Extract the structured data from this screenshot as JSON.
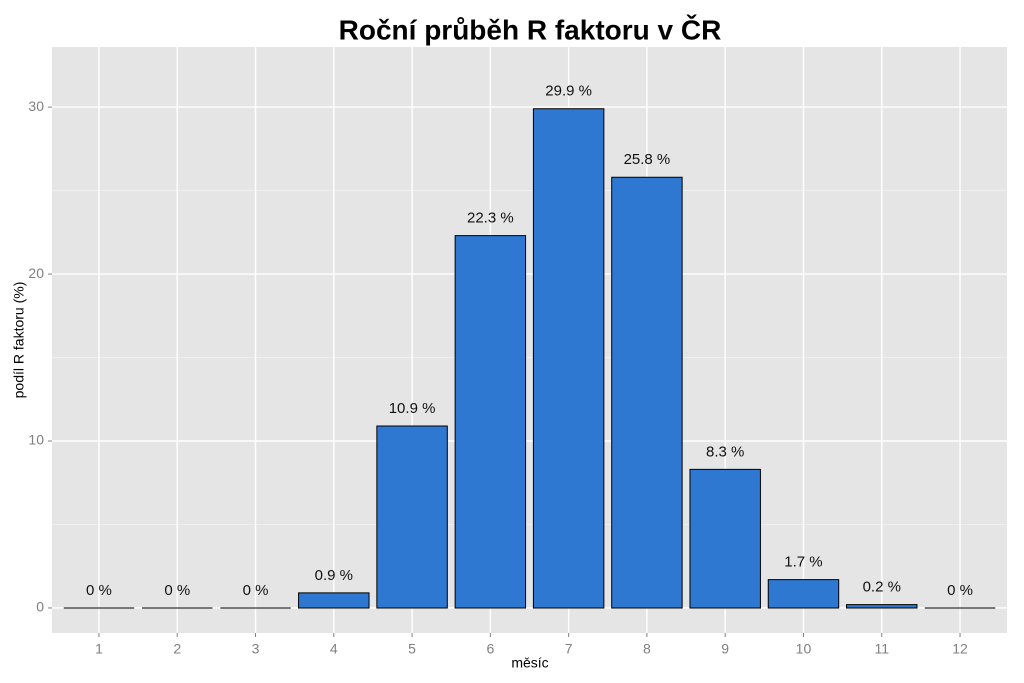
{
  "chart_data": {
    "type": "bar",
    "title": "Roční průběh R faktoru v ČR",
    "x_label": "měsíc",
    "y_label": "podíl R faktoru (%)",
    "categories": [
      "1",
      "2",
      "3",
      "4",
      "5",
      "6",
      "7",
      "8",
      "9",
      "10",
      "11",
      "12"
    ],
    "values": [
      0,
      0,
      0,
      0.9,
      10.9,
      22.3,
      29.9,
      25.8,
      8.3,
      1.7,
      0.2,
      0
    ],
    "value_labels": [
      "0 %",
      "0 %",
      "0 %",
      "0.9 %",
      "10.9 %",
      "22.3 %",
      "29.9 %",
      "25.8 %",
      "8.3 %",
      "1.7 %",
      "0.2 %",
      "0 %"
    ],
    "color": "#2e78d2",
    "ylim": [
      -1.5,
      33.6
    ],
    "yticks": [
      0,
      10,
      20,
      30
    ],
    "grid": true
  }
}
